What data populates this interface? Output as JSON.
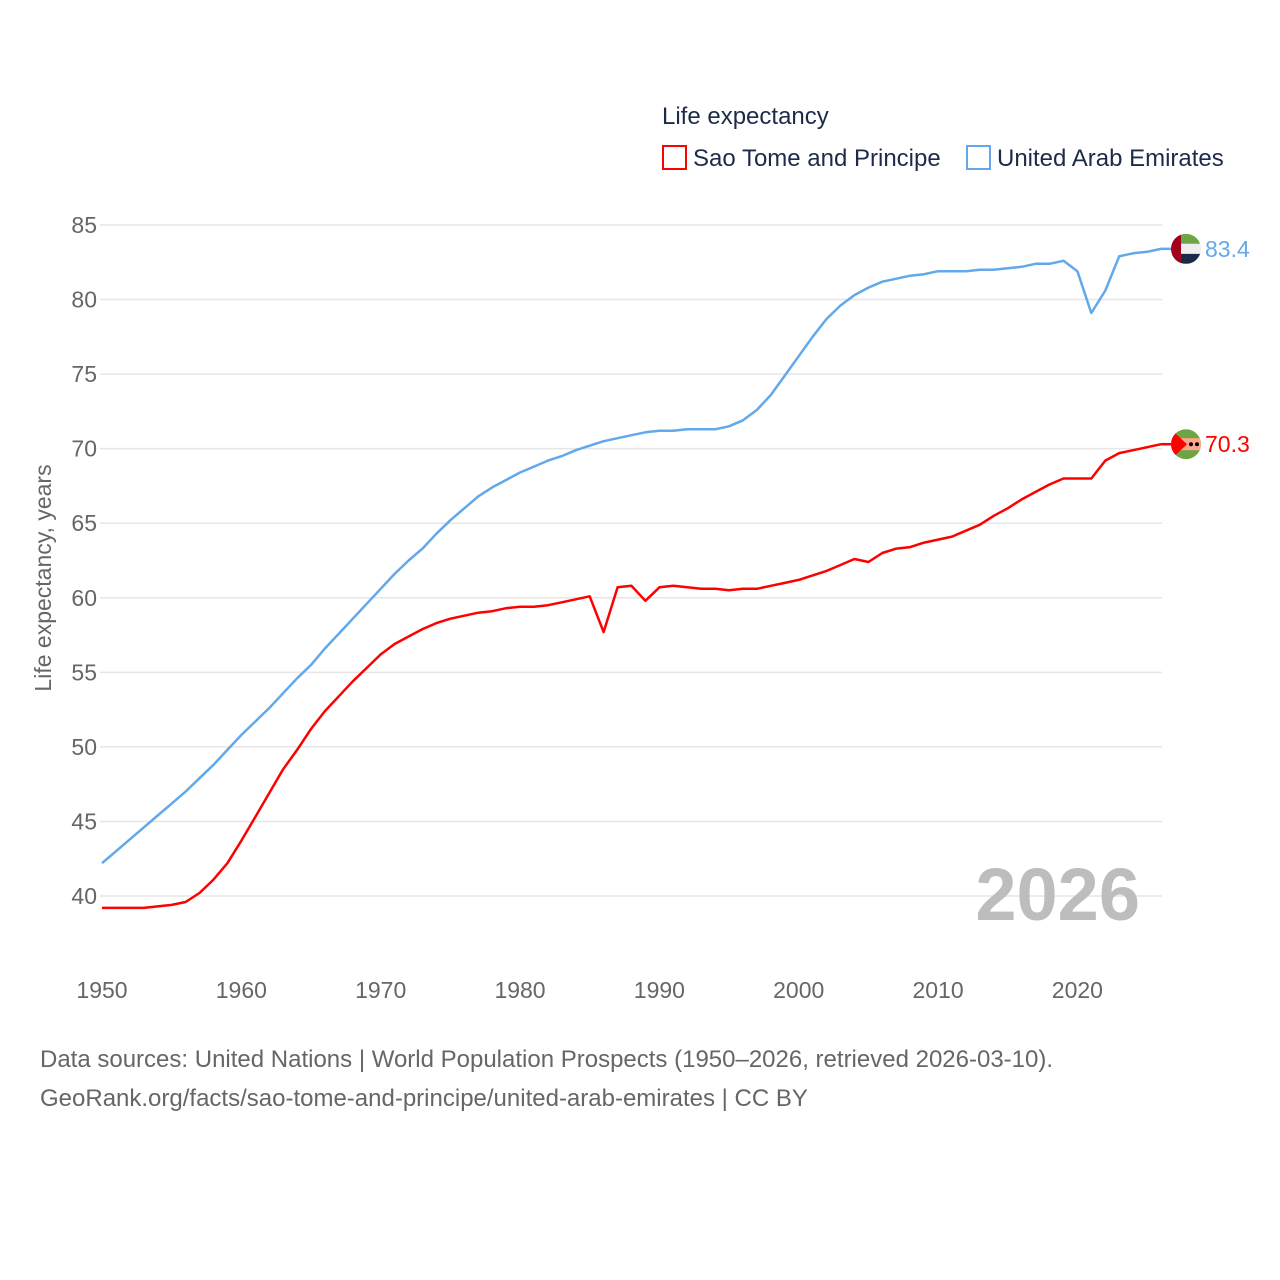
{
  "chart_data": {
    "type": "line",
    "legend_title": "Life expectancy",
    "legend_placement": "top-right",
    "ylabel": "Life expectancy, years",
    "xlabel": "",
    "ylim": [
      37,
      86
    ],
    "xlim": [
      1950,
      2026
    ],
    "yticks": [
      40,
      45,
      50,
      55,
      60,
      65,
      70,
      75,
      80,
      85
    ],
    "xticks": [
      1950,
      1960,
      1970,
      1980,
      1990,
      2000,
      2010,
      2020
    ],
    "grid": true,
    "year_watermark": "2026",
    "x_start": 1950,
    "series": [
      {
        "name": "Sao Tome and Principe",
        "color": "#ff0000",
        "end_label": "70.3",
        "flag": "sao-tome-and-principe-flag",
        "values": [
          39.2,
          39.2,
          39.2,
          39.2,
          39.3,
          39.4,
          39.6,
          40.2,
          41.1,
          42.2,
          43.7,
          45.3,
          46.9,
          48.5,
          49.8,
          51.2,
          52.4,
          53.4,
          54.4,
          55.3,
          56.2,
          56.9,
          57.4,
          57.9,
          58.3,
          58.6,
          58.8,
          59.0,
          59.1,
          59.3,
          59.4,
          59.4,
          59.5,
          59.7,
          59.9,
          60.1,
          57.7,
          60.7,
          60.8,
          59.8,
          60.7,
          60.8,
          60.7,
          60.6,
          60.6,
          60.5,
          60.6,
          60.6,
          60.8,
          61.0,
          61.2,
          61.5,
          61.8,
          62.2,
          62.6,
          62.4,
          63.0,
          63.3,
          63.4,
          63.7,
          63.9,
          64.1,
          64.5,
          64.9,
          65.5,
          66.0,
          66.6,
          67.1,
          67.6,
          68.0,
          68.0,
          68.0,
          69.2,
          69.7,
          69.9,
          70.1,
          70.3
        ]
      },
      {
        "name": "United Arab Emirates",
        "color": "#62a8ea",
        "end_label": "83.4",
        "flag": "united-arab-emirates-flag",
        "values": [
          42.2,
          43.0,
          43.8,
          44.6,
          45.4,
          46.2,
          47.0,
          47.9,
          48.8,
          49.8,
          50.8,
          51.7,
          52.6,
          53.6,
          54.6,
          55.5,
          56.6,
          57.6,
          58.6,
          59.6,
          60.6,
          61.6,
          62.5,
          63.3,
          64.3,
          65.2,
          66.0,
          66.8,
          67.4,
          67.9,
          68.4,
          68.8,
          69.2,
          69.5,
          69.9,
          70.2,
          70.5,
          70.7,
          70.9,
          71.1,
          71.2,
          71.2,
          71.3,
          71.3,
          71.3,
          71.5,
          71.9,
          72.6,
          73.6,
          74.9,
          76.2,
          77.5,
          78.7,
          79.6,
          80.3,
          80.8,
          81.2,
          81.4,
          81.6,
          81.7,
          81.9,
          81.9,
          81.9,
          82.0,
          82.0,
          82.1,
          82.2,
          82.4,
          82.4,
          82.6,
          81.9,
          79.1,
          80.6,
          82.9,
          83.1,
          83.2,
          83.4
        ]
      }
    ]
  },
  "footer": {
    "line1": "Data sources: United Nations | World Population Prospects (1950–2026, retrieved 2026-03-10).",
    "line2": "GeoRank.org/facts/sao-tome-and-principe/united-arab-emirates | CC BY"
  }
}
